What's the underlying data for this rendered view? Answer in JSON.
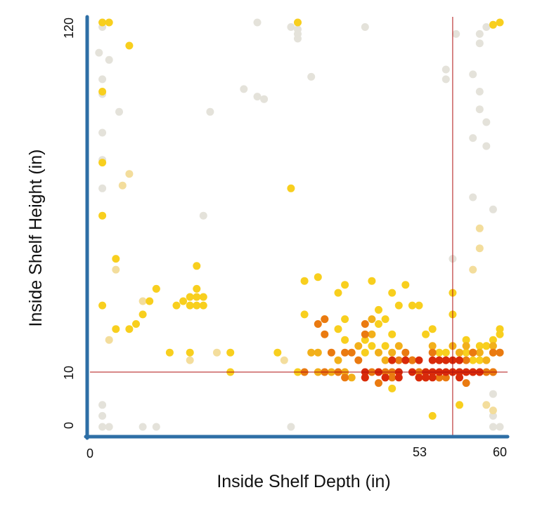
{
  "chart_data": {
    "type": "scatter",
    "xlabel": "Inside Shelf Depth (in)",
    "ylabel": "Inside Shelf Height (in)",
    "xlim": [
      0,
      60
    ],
    "ylim": [
      0,
      120
    ],
    "y_scale": "nonlinear (0, 10 and 120 ticks; low values expanded)",
    "x_ticks": [
      "0",
      "53",
      "60"
    ],
    "y_ticks": [
      "0",
      "10",
      "120"
    ],
    "reference_lines": {
      "x": 53,
      "y": 10,
      "color": "#b01010"
    },
    "grid": false,
    "legend": "none",
    "color_scale": {
      "description": "density of points, grey (low) to red (high)",
      "grey": "#e4e2da",
      "pale_yellow": "#f3dd9c",
      "yellow": "#f8cf1e",
      "orange_yellow": "#f2b01a",
      "orange": "#ea7a10",
      "red": "#d82a0a"
    },
    "series": [
      {
        "color": "#e4e2da",
        "points": [
          [
            1,
            120
          ],
          [
            1,
            118
          ],
          [
            0.5,
            107
          ],
          [
            2,
            104
          ],
          [
            1,
            96
          ],
          [
            1,
            90
          ],
          [
            3.5,
            83
          ],
          [
            1,
            75
          ],
          [
            1,
            65
          ],
          [
            1,
            55
          ],
          [
            1,
            4
          ],
          [
            1,
            2
          ],
          [
            2,
            0
          ],
          [
            1,
            0
          ],
          [
            24,
            120
          ],
          [
            30,
            120
          ],
          [
            30,
            117
          ],
          [
            29,
            118
          ],
          [
            30,
            115
          ],
          [
            30,
            113
          ],
          [
            40,
            118
          ],
          [
            32,
            97
          ],
          [
            22,
            92
          ],
          [
            24,
            89
          ],
          [
            25,
            88
          ],
          [
            17,
            83
          ],
          [
            16,
            46
          ],
          [
            29,
            0
          ],
          [
            7,
            0
          ],
          [
            9,
            0
          ],
          [
            59,
            119
          ],
          [
            58,
            118
          ],
          [
            57,
            115
          ],
          [
            57,
            111
          ],
          [
            56,
            98
          ],
          [
            57,
            91
          ],
          [
            57,
            84
          ],
          [
            58,
            79
          ],
          [
            56,
            73
          ],
          [
            58,
            70
          ],
          [
            56,
            52
          ],
          [
            59,
            48
          ],
          [
            59,
            6
          ],
          [
            59,
            2
          ],
          [
            60,
            0
          ],
          [
            59,
            0
          ],
          [
            53.5,
            115
          ],
          [
            53,
            33
          ],
          [
            52,
            100
          ],
          [
            52,
            96
          ]
        ]
      },
      {
        "color": "#f3dd9c",
        "points": [
          [
            9,
            25
          ],
          [
            7,
            22
          ],
          [
            18,
            12
          ],
          [
            28,
            11
          ],
          [
            14,
            11
          ],
          [
            58,
            13
          ],
          [
            56,
            30
          ],
          [
            57,
            42
          ],
          [
            57,
            36
          ],
          [
            2,
            14
          ],
          [
            3,
            30
          ],
          [
            4,
            56
          ],
          [
            5,
            60
          ],
          [
            59,
            3
          ],
          [
            58,
            4
          ]
        ]
      },
      {
        "color": "#f8cf1e",
        "points": [
          [
            1,
            120
          ],
          [
            2,
            120
          ],
          [
            5,
            110
          ],
          [
            1,
            91
          ],
          [
            1,
            64
          ],
          [
            1,
            46
          ],
          [
            3,
            33
          ],
          [
            1,
            21
          ],
          [
            11,
            12
          ],
          [
            14,
            12
          ],
          [
            20,
            12
          ],
          [
            20,
            10
          ],
          [
            27,
            12
          ],
          [
            30,
            10
          ],
          [
            29,
            55
          ],
          [
            31,
            27
          ],
          [
            31,
            19
          ],
          [
            33,
            28
          ],
          [
            36,
            24
          ],
          [
            37,
            26
          ],
          [
            34,
            18
          ],
          [
            36,
            16
          ],
          [
            37,
            14
          ],
          [
            40,
            12
          ],
          [
            40,
            14
          ],
          [
            37,
            18
          ],
          [
            41,
            27
          ],
          [
            42,
            20
          ],
          [
            42,
            17
          ],
          [
            41,
            13
          ],
          [
            43,
            13
          ],
          [
            44,
            15
          ],
          [
            43,
            18
          ],
          [
            44,
            24
          ],
          [
            46,
            26
          ],
          [
            47,
            21
          ],
          [
            48,
            21
          ],
          [
            12,
            21
          ],
          [
            13,
            22
          ],
          [
            14,
            23
          ],
          [
            14,
            21
          ],
          [
            15,
            23
          ],
          [
            15,
            21
          ],
          [
            16,
            23
          ],
          [
            16,
            21
          ],
          [
            15,
            25
          ],
          [
            15,
            31
          ],
          [
            7,
            19
          ],
          [
            8,
            22
          ],
          [
            6,
            17
          ],
          [
            5,
            16
          ],
          [
            3,
            16
          ],
          [
            9,
            25
          ],
          [
            54,
            12
          ],
          [
            55,
            14
          ],
          [
            56,
            12
          ],
          [
            57,
            13
          ],
          [
            58,
            11
          ],
          [
            59,
            14
          ],
          [
            59,
            12
          ],
          [
            60,
            16
          ],
          [
            60,
            15
          ],
          [
            57,
            11
          ],
          [
            58,
            13
          ],
          [
            56,
            11
          ],
          [
            44,
            7
          ],
          [
            53,
            24
          ],
          [
            53,
            19
          ],
          [
            49,
            15
          ],
          [
            50,
            16
          ],
          [
            51,
            12
          ],
          [
            52,
            12
          ],
          [
            55,
            12
          ],
          [
            54,
            4
          ],
          [
            30,
            120
          ],
          [
            59,
            119
          ],
          [
            60,
            120
          ],
          [
            50,
            2
          ],
          [
            45,
            21
          ]
        ]
      },
      {
        "color": "#f2b01a",
        "points": [
          [
            33,
            12
          ],
          [
            35,
            10
          ],
          [
            36,
            11
          ],
          [
            37,
            10
          ],
          [
            38,
            9
          ],
          [
            39,
            13
          ],
          [
            41,
            15
          ],
          [
            41,
            18
          ],
          [
            42,
            12
          ],
          [
            43,
            11
          ],
          [
            44,
            12
          ],
          [
            45,
            13
          ],
          [
            46,
            11
          ],
          [
            47,
            11
          ],
          [
            48,
            10
          ],
          [
            49,
            10
          ],
          [
            50,
            13
          ],
          [
            51,
            11
          ],
          [
            53,
            13
          ],
          [
            54,
            12
          ],
          [
            55,
            13
          ],
          [
            56,
            12
          ],
          [
            57,
            12
          ],
          [
            58,
            11
          ],
          [
            59,
            13
          ],
          [
            59,
            10
          ],
          [
            60,
            12
          ],
          [
            32,
            12
          ],
          [
            33,
            10
          ]
        ]
      },
      {
        "color": "#ea7a10",
        "points": [
          [
            31,
            10
          ],
          [
            34,
            10
          ],
          [
            36,
            10
          ],
          [
            37,
            9
          ],
          [
            37,
            12
          ],
          [
            38,
            12
          ],
          [
            39,
            11
          ],
          [
            40,
            9
          ],
          [
            41,
            10
          ],
          [
            42,
            8
          ],
          [
            42,
            10
          ],
          [
            43,
            10
          ],
          [
            44,
            9
          ],
          [
            45,
            10
          ],
          [
            46,
            12
          ],
          [
            47,
            11
          ],
          [
            48,
            10
          ],
          [
            49,
            9
          ],
          [
            50,
            10
          ],
          [
            51,
            11
          ],
          [
            51,
            9
          ],
          [
            52,
            9
          ],
          [
            53,
            10
          ],
          [
            54,
            11
          ],
          [
            55,
            11
          ],
          [
            56,
            12
          ],
          [
            56,
            10
          ],
          [
            57,
            10
          ],
          [
            58,
            10
          ],
          [
            59,
            12
          ],
          [
            59,
            10
          ],
          [
            60,
            12
          ],
          [
            34,
            18
          ],
          [
            34,
            15
          ],
          [
            40,
            15
          ],
          [
            40,
            17
          ],
          [
            43,
            9
          ],
          [
            44,
            10
          ],
          [
            45,
            11
          ],
          [
            46,
            11
          ],
          [
            47,
            11
          ],
          [
            48,
            9
          ],
          [
            49,
            9
          ],
          [
            50,
            12
          ],
          [
            51,
            9
          ],
          [
            52,
            11
          ],
          [
            54,
            10
          ],
          [
            55,
            8
          ],
          [
            35,
            12
          ],
          [
            33,
            17
          ]
        ]
      },
      {
        "color": "#d82a0a",
        "points": [
          [
            40,
            10
          ],
          [
            40,
            9
          ],
          [
            42,
            10
          ],
          [
            43,
            9
          ],
          [
            44,
            11
          ],
          [
            45,
            10
          ],
          [
            45,
            9
          ],
          [
            46,
            11
          ],
          [
            47,
            10
          ],
          [
            48,
            11
          ],
          [
            49,
            9
          ],
          [
            49,
            10
          ],
          [
            50,
            10
          ],
          [
            50,
            11
          ],
          [
            51,
            10
          ],
          [
            51,
            11
          ],
          [
            52,
            11
          ],
          [
            52,
            10
          ],
          [
            53,
            10
          ],
          [
            54,
            10
          ],
          [
            53,
            11
          ],
          [
            54,
            11
          ],
          [
            54,
            9
          ],
          [
            55,
            10
          ],
          [
            56,
            10
          ],
          [
            57,
            10
          ],
          [
            50,
            9
          ],
          [
            48,
            9
          ]
        ]
      }
    ]
  }
}
